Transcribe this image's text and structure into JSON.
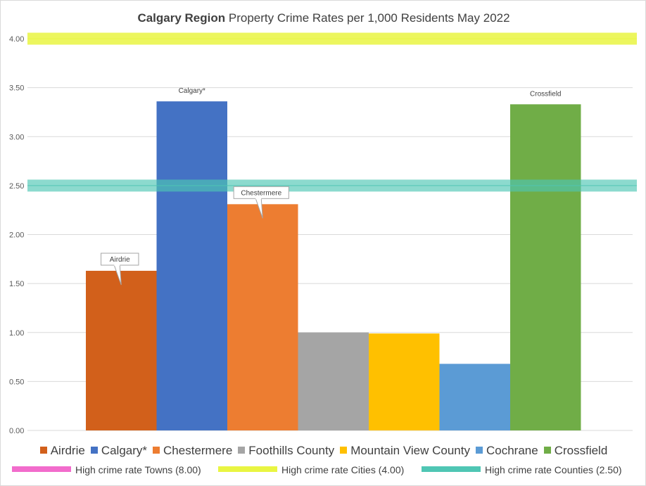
{
  "chart_data": {
    "type": "bar",
    "title_bold": "Calgary Region",
    "title_rest": " Property Crime Rates per 1,000 Residents May 2022",
    "ylim": [
      0,
      4
    ],
    "yticks": [
      "0.00",
      "0.50",
      "1.00",
      "1.50",
      "2.00",
      "2.50",
      "3.00",
      "3.50",
      "4.00"
    ],
    "grid": true,
    "legend_position": "bottom",
    "series": [
      {
        "name": "Airdrie",
        "value": 1.63,
        "color": "#d2601b",
        "label": "Airdrie",
        "label_style": "callout"
      },
      {
        "name": "Calgary*",
        "value": 3.36,
        "color": "#4472c4",
        "label": "Calgary*",
        "label_style": "plain"
      },
      {
        "name": "Chestermere",
        "value": 2.31,
        "color": "#ed7d31",
        "label": "Chestermere",
        "label_style": "callout"
      },
      {
        "name": "Foothills County",
        "value": 1.0,
        "color": "#a5a5a5",
        "label": "",
        "label_style": "none"
      },
      {
        "name": "Mountain View County",
        "value": 0.99,
        "color": "#ffc000",
        "label": "",
        "label_style": "none"
      },
      {
        "name": "Cochrane",
        "value": 0.68,
        "color": "#5b9bd5",
        "label": "",
        "label_style": "none"
      },
      {
        "name": "Crossfield",
        "value": 3.33,
        "color": "#70ad47",
        "label": "Crossfield",
        "label_style": "plain"
      }
    ],
    "reference_lines": [
      {
        "name": "High crime rate Towns (8.00)",
        "value": 8.0,
        "color": "#f26ccc"
      },
      {
        "name": "High crime rate Cities (4.00)",
        "value": 4.0,
        "color": "#e9f542"
      },
      {
        "name": "High crime rate Counties (2.50)",
        "value": 2.5,
        "color": "#4fc6b4"
      }
    ]
  }
}
